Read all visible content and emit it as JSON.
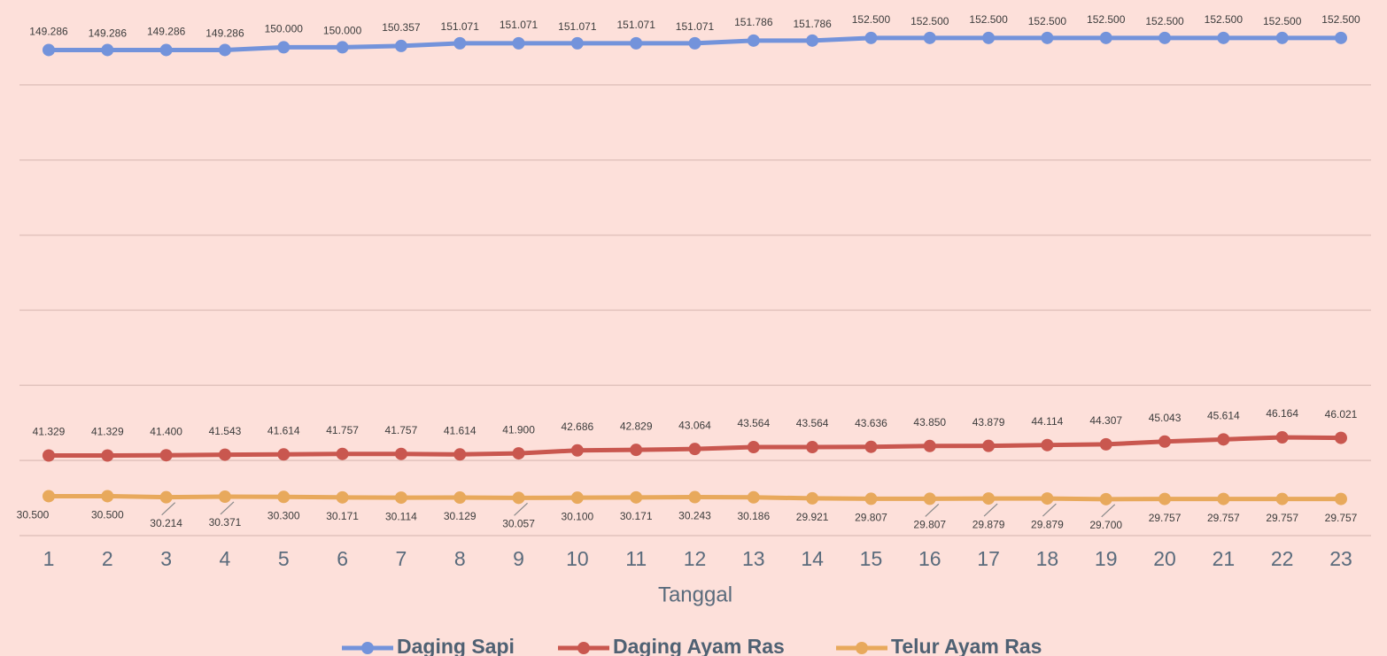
{
  "chart_data": {
    "type": "line",
    "x_label": "Tanggal",
    "categories": [
      "1",
      "2",
      "3",
      "4",
      "5",
      "6",
      "7",
      "8",
      "9",
      "10",
      "11",
      "12",
      "13",
      "14",
      "15",
      "16",
      "17",
      "18",
      "19",
      "20",
      "21",
      "22",
      "23"
    ],
    "ylim": [
      20,
      160
    ],
    "yticks": [
      20,
      40,
      60,
      80,
      100,
      120,
      140
    ],
    "grid": true,
    "legend": "bottom",
    "series": [
      {
        "name": "Daging Sapi",
        "color": "#7393db",
        "values": [
          149.286,
          149.286,
          149.286,
          149.286,
          150,
          150,
          150.357,
          151.071,
          151.071,
          151.071,
          151.071,
          151.071,
          151.786,
          151.786,
          152.5,
          152.5,
          152.5,
          152.5,
          152.5,
          152.5,
          152.5,
          152.5,
          152.5
        ],
        "value_labels": [
          "149.286",
          "149.286",
          "149.286",
          "149.286",
          "150.000",
          "150.000",
          "150.357",
          "151.071",
          "151.071",
          "151.071",
          "151.071",
          "151.071",
          "151.786",
          "151.786",
          "152.500",
          "152.500",
          "152.500",
          "152.500",
          "152.500",
          "152.500",
          "152.500",
          "152.500",
          "152.500"
        ]
      },
      {
        "name": "Daging Ayam Ras",
        "color": "#c9574f",
        "values": [
          41.329,
          41.329,
          41.4,
          41.543,
          41.614,
          41.757,
          41.757,
          41.614,
          41.9,
          42.686,
          42.829,
          43.064,
          43.564,
          43.564,
          43.636,
          43.85,
          43.879,
          44.114,
          44.307,
          45.043,
          45.614,
          46.164,
          46.021
        ],
        "value_labels": [
          "41.329",
          "41.329",
          "41.400",
          "41.543",
          "41.614",
          "41.757",
          "41.757",
          "41.614",
          "41.900",
          "42.686",
          "42.829",
          "43.064",
          "43.564",
          "43.564",
          "43.636",
          "43.850",
          "43.879",
          "44.114",
          "44.307",
          "45.043",
          "45.614",
          "46.164",
          "46.021"
        ]
      },
      {
        "name": "Telur Ayam Ras",
        "color": "#e8a95c",
        "values": [
          30.5,
          30.5,
          30.214,
          30.371,
          30.3,
          30.171,
          30.114,
          30.129,
          30.057,
          30.1,
          30.171,
          30.243,
          30.186,
          29.921,
          29.807,
          29.807,
          29.879,
          29.879,
          29.7,
          29.757,
          29.757,
          29.757,
          29.757
        ],
        "value_labels": [
          "30.500",
          "30.500",
          "30.214",
          "30.371",
          "30.300",
          "30.171",
          "30.114",
          "30.129",
          "30.057",
          "30.100",
          "30.171",
          "30.243",
          "30.186",
          "29.921",
          "29.807",
          "29.807",
          "29.879",
          "29.879",
          "29.700",
          "29.757",
          "29.757",
          "29.757",
          "29.757"
        ]
      }
    ]
  }
}
